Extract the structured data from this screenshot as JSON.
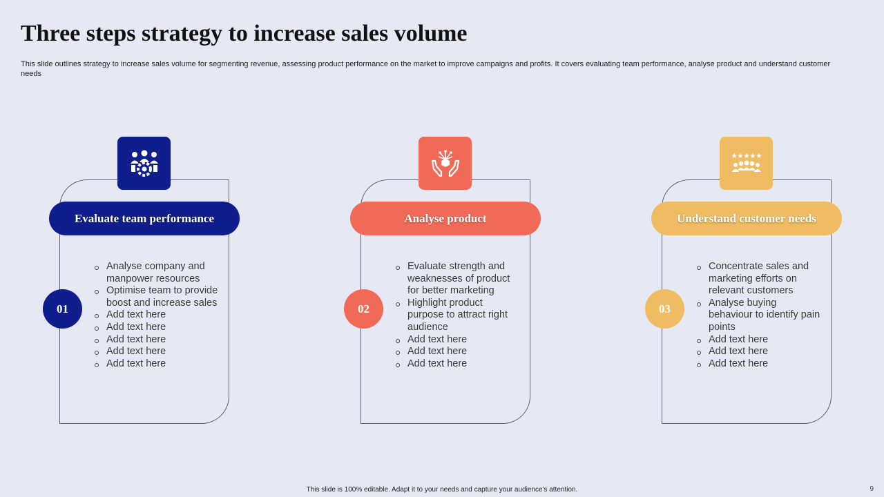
{
  "title": "Three steps strategy to increase sales volume",
  "subtitle": "This slide outlines strategy to increase sales volume for segmenting revenue, assessing product performance on the market to improve campaigns and profits. It covers evaluating team performance, analyse product and understand customer needs",
  "colors": {
    "blue": "#0f1e8c",
    "coral": "#f06a57",
    "gold": "#f0bc63",
    "background": "#e6e9f4"
  },
  "steps": [
    {
      "number": "01",
      "heading": "Evaluate team performance",
      "icon": "team-gear-icon",
      "bullets": [
        "Analyse company and manpower resources",
        "Optimise team to provide boost and increase sales",
        "Add text here",
        "Add text here",
        "Add text here",
        "Add text here",
        "Add text here"
      ]
    },
    {
      "number": "02",
      "heading": "Analyse product",
      "icon": "hands-product-icon",
      "bullets": [
        "Evaluate strength and weaknesses of product for better marketing",
        "Highlight product purpose to attract right audience",
        "Add text here",
        "Add text here",
        "Add text here"
      ]
    },
    {
      "number": "03",
      "heading": "Understand customer needs",
      "icon": "customer-rating-icon",
      "bullets": [
        "Concentrate sales and marketing efforts on relevant customers",
        "Analyse buying behaviour to identify pain points",
        "Add text here",
        "Add text here",
        "Add text here"
      ]
    }
  ],
  "footer": "This slide is 100% editable. Adapt it to your needs and capture your audience's attention.",
  "page_number": "9"
}
